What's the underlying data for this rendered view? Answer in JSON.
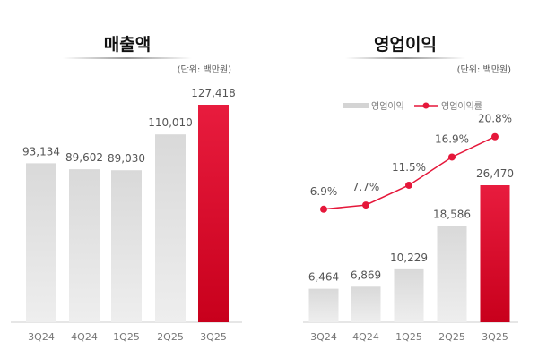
{
  "chart_data": [
    {
      "type": "bar",
      "title": "매출액",
      "unit": "(단위: 백만원)",
      "categories": [
        "3Q24",
        "4Q24",
        "1Q25",
        "2Q25",
        "3Q25"
      ],
      "values": [
        93134,
        89602,
        89030,
        110010,
        127418
      ],
      "value_labels": [
        "93,134",
        "89,602",
        "89,030",
        "110,010",
        "127,418"
      ],
      "ylim": [
        0,
        127418
      ],
      "highlight_color": "#e5173a",
      "bar_color": "#dcdcdc",
      "grid": false
    },
    {
      "type": "bar+line",
      "title": "영업이익",
      "unit": "(단위: 백만원)",
      "categories": [
        "3Q24",
        "4Q24",
        "1Q25",
        "2Q25",
        "3Q25"
      ],
      "legend": [
        "영업이익",
        "영업이익률"
      ],
      "legend_position": "top",
      "series": [
        {
          "name": "영업이익",
          "type": "bar",
          "values": [
            6464,
            6869,
            10229,
            18586,
            26470
          ],
          "value_labels": [
            "6,464",
            "6,869",
            "10,229",
            "18,586",
            "26,470"
          ]
        },
        {
          "name": "영업이익률",
          "type": "line",
          "values": [
            6.9,
            7.7,
            11.5,
            16.9,
            20.8
          ],
          "value_labels": [
            "6.9%",
            "7.7%",
            "11.5%",
            "16.9%",
            "20.8%"
          ]
        }
      ],
      "line_color": "#e5173a",
      "highlight_color": "#e5173a",
      "bar_color": "#dcdcdc",
      "grid": false
    }
  ]
}
